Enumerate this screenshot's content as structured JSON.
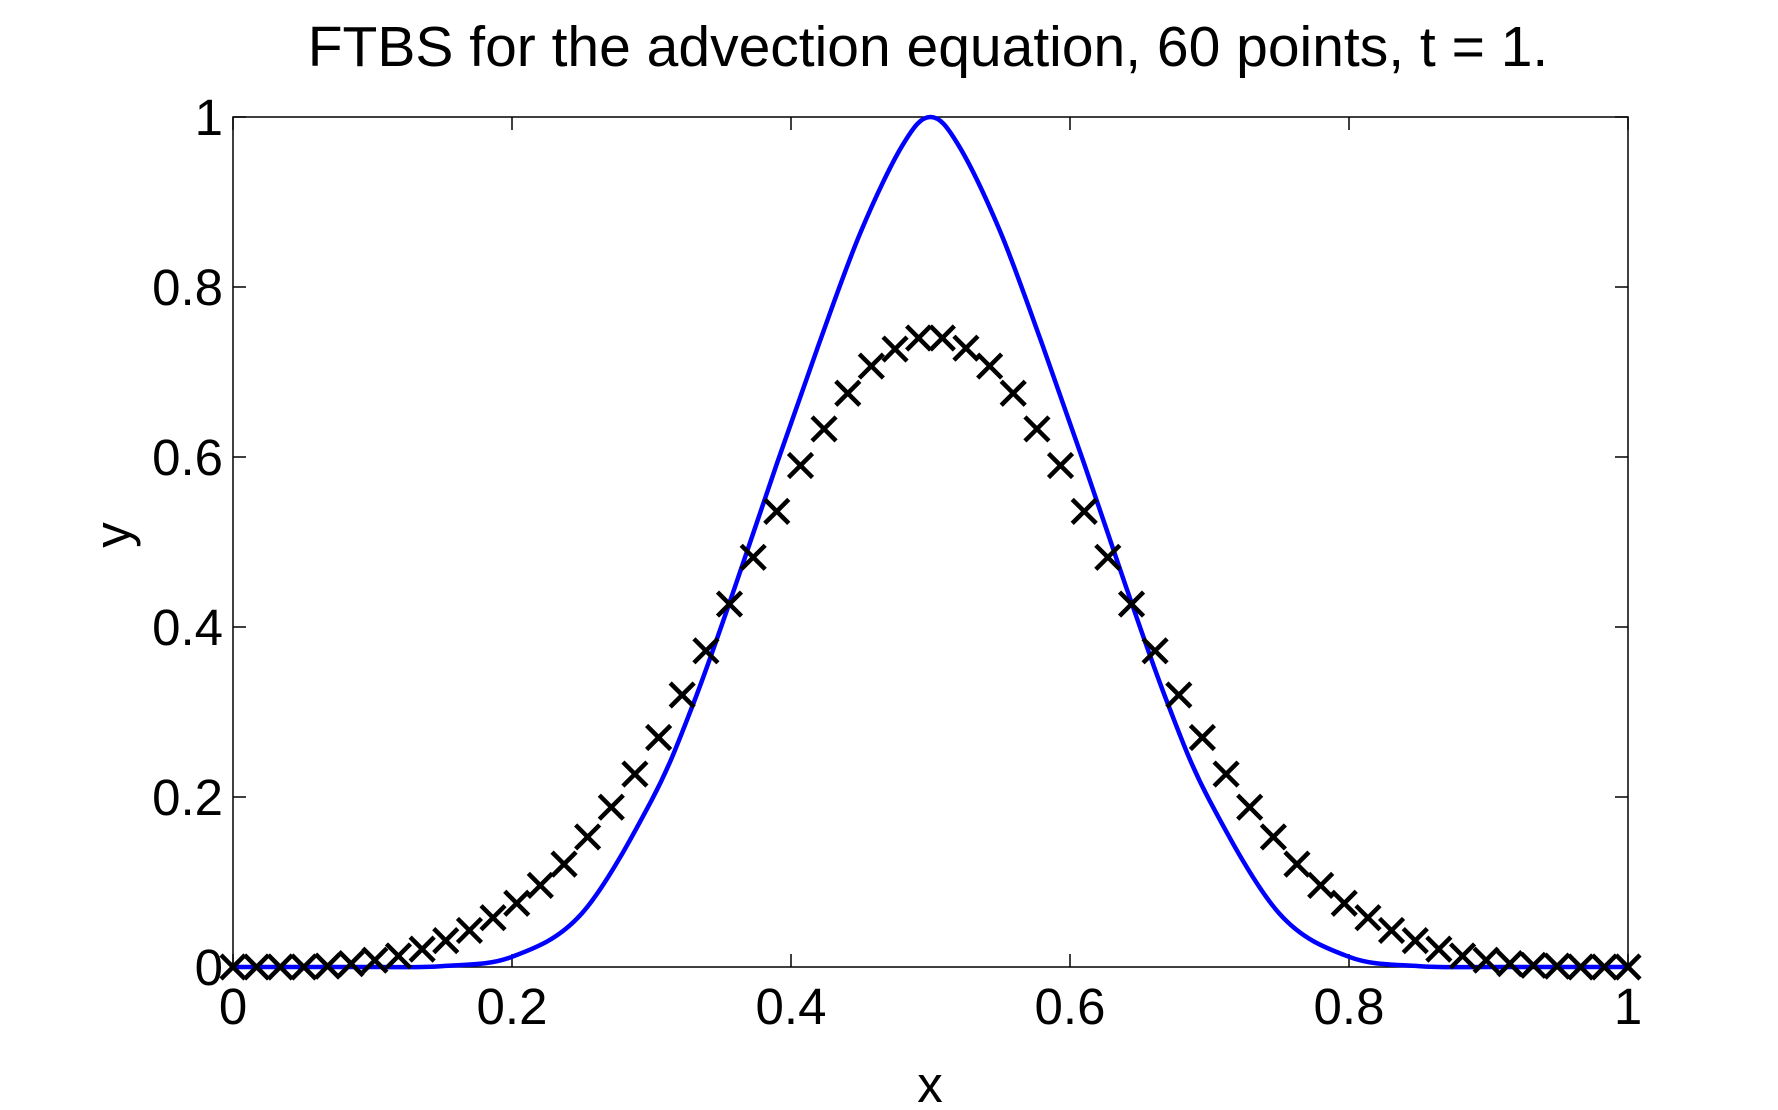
{
  "chart_data": {
    "type": "line",
    "title": "FTBS for the advection equation, 60 points, t = 1.",
    "xlabel": "x",
    "ylabel": "y",
    "xlim": [
      0,
      1
    ],
    "ylim": [
      0,
      1
    ],
    "xticks": [
      "0",
      "0.2",
      "0.4",
      "0.6",
      "0.8",
      "1"
    ],
    "yticks": [
      "0",
      "0.2",
      "0.4",
      "0.6",
      "0.8",
      "1"
    ],
    "grid": false,
    "legend": "none",
    "series": [
      {
        "style": "solid line",
        "color": "#0000ff",
        "x": [
          0,
          0.05,
          0.1,
          0.15,
          0.2,
          0.25,
          0.3,
          0.33,
          0.36,
          0.39,
          0.42,
          0.45,
          0.48,
          0.5,
          0.52,
          0.55,
          0.58,
          0.61,
          0.64,
          0.67,
          0.7,
          0.75,
          0.8,
          0.85,
          0.9,
          0.95,
          1
        ],
        "y": [
          0.0,
          0.0,
          0.0,
          0.001,
          0.012,
          0.063,
          0.196,
          0.31,
          0.448,
          0.593,
          0.733,
          0.865,
          0.967,
          1.0,
          0.967,
          0.865,
          0.733,
          0.593,
          0.448,
          0.31,
          0.196,
          0.063,
          0.012,
          0.001,
          0.0,
          0.0,
          0.0
        ]
      },
      {
        "style": "x markers",
        "color": "#000000",
        "x": [
          0,
          0.0169,
          0.0339,
          0.0508,
          0.0678,
          0.0847,
          0.1017,
          0.1186,
          0.1356,
          0.1525,
          0.1695,
          0.1864,
          0.2034,
          0.2203,
          0.2373,
          0.2542,
          0.2712,
          0.2881,
          0.3051,
          0.322,
          0.339,
          0.3559,
          0.3729,
          0.3898,
          0.4068,
          0.4237,
          0.4407,
          0.4576,
          0.4746,
          0.4915,
          0.5085,
          0.5254,
          0.5424,
          0.5593,
          0.5763,
          0.5932,
          0.6102,
          0.6271,
          0.6441,
          0.661,
          0.678,
          0.6949,
          0.7119,
          0.7288,
          0.7458,
          0.7627,
          0.7797,
          0.7966,
          0.8136,
          0.8305,
          0.8475,
          0.8644,
          0.8814,
          0.8983,
          0.9153,
          0.9322,
          0.9492,
          0.9661,
          0.9831,
          1
        ],
        "y": [
          0.0,
          0.0,
          0.0,
          0.0,
          0.001,
          0.004,
          0.008,
          0.013,
          0.021,
          0.031,
          0.043,
          0.058,
          0.075,
          0.096,
          0.121,
          0.153,
          0.188,
          0.227,
          0.27,
          0.32,
          0.372,
          0.427,
          0.482,
          0.536,
          0.59,
          0.633,
          0.675,
          0.707,
          0.727,
          0.74,
          0.74,
          0.728,
          0.707,
          0.675,
          0.633,
          0.59,
          0.536,
          0.482,
          0.427,
          0.372,
          0.32,
          0.27,
          0.227,
          0.188,
          0.153,
          0.121,
          0.096,
          0.075,
          0.058,
          0.043,
          0.031,
          0.021,
          0.013,
          0.008,
          0.004,
          0.002,
          0.001,
          0.0,
          0.0,
          0.0
        ]
      }
    ]
  }
}
